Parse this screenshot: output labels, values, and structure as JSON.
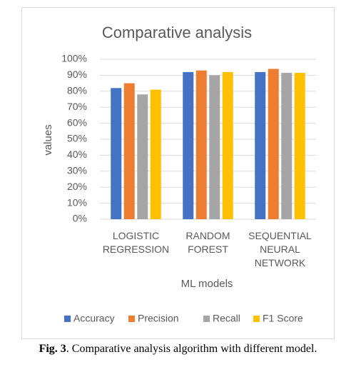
{
  "chart_data": {
    "type": "bar",
    "title": "Comparative analysis",
    "x_label": "ML models",
    "y_label": "values",
    "categories": [
      "LOGISTIC REGRESSION",
      "RANDOM FOREST",
      "SEQUENTIAL NEURAL NETWORK"
    ],
    "series": [
      {
        "name": "Accuracy",
        "color": "#4472c4",
        "values": [
          82,
          92,
          92
        ]
      },
      {
        "name": "Precision",
        "color": "#ed7d31",
        "values": [
          85,
          93,
          94
        ]
      },
      {
        "name": "Recall",
        "color": "#a5a5a5",
        "values": [
          78,
          90,
          91.5
        ]
      },
      {
        "name": "F1 Score",
        "color": "#ffc000",
        "values": [
          81,
          92,
          91.5
        ]
      }
    ],
    "ylim": [
      0,
      100
    ],
    "yticks": [
      {
        "value": 0,
        "label": "0%"
      },
      {
        "value": 10,
        "label": "10%"
      },
      {
        "value": 20,
        "label": "20%"
      },
      {
        "value": 30,
        "label": "30%"
      },
      {
        "value": 40,
        "label": "40%"
      },
      {
        "value": 50,
        "label": "50%"
      },
      {
        "value": 60,
        "label": "60%"
      },
      {
        "value": 70,
        "label": "70%"
      },
      {
        "value": 80,
        "label": "80%"
      },
      {
        "value": 90,
        "label": "90%"
      },
      {
        "value": 100,
        "label": "100%"
      }
    ],
    "grid": true,
    "legend": "bottom"
  },
  "caption": {
    "label": "Fig. 3",
    "text": ". Comparative analysis algorithm with different model."
  }
}
